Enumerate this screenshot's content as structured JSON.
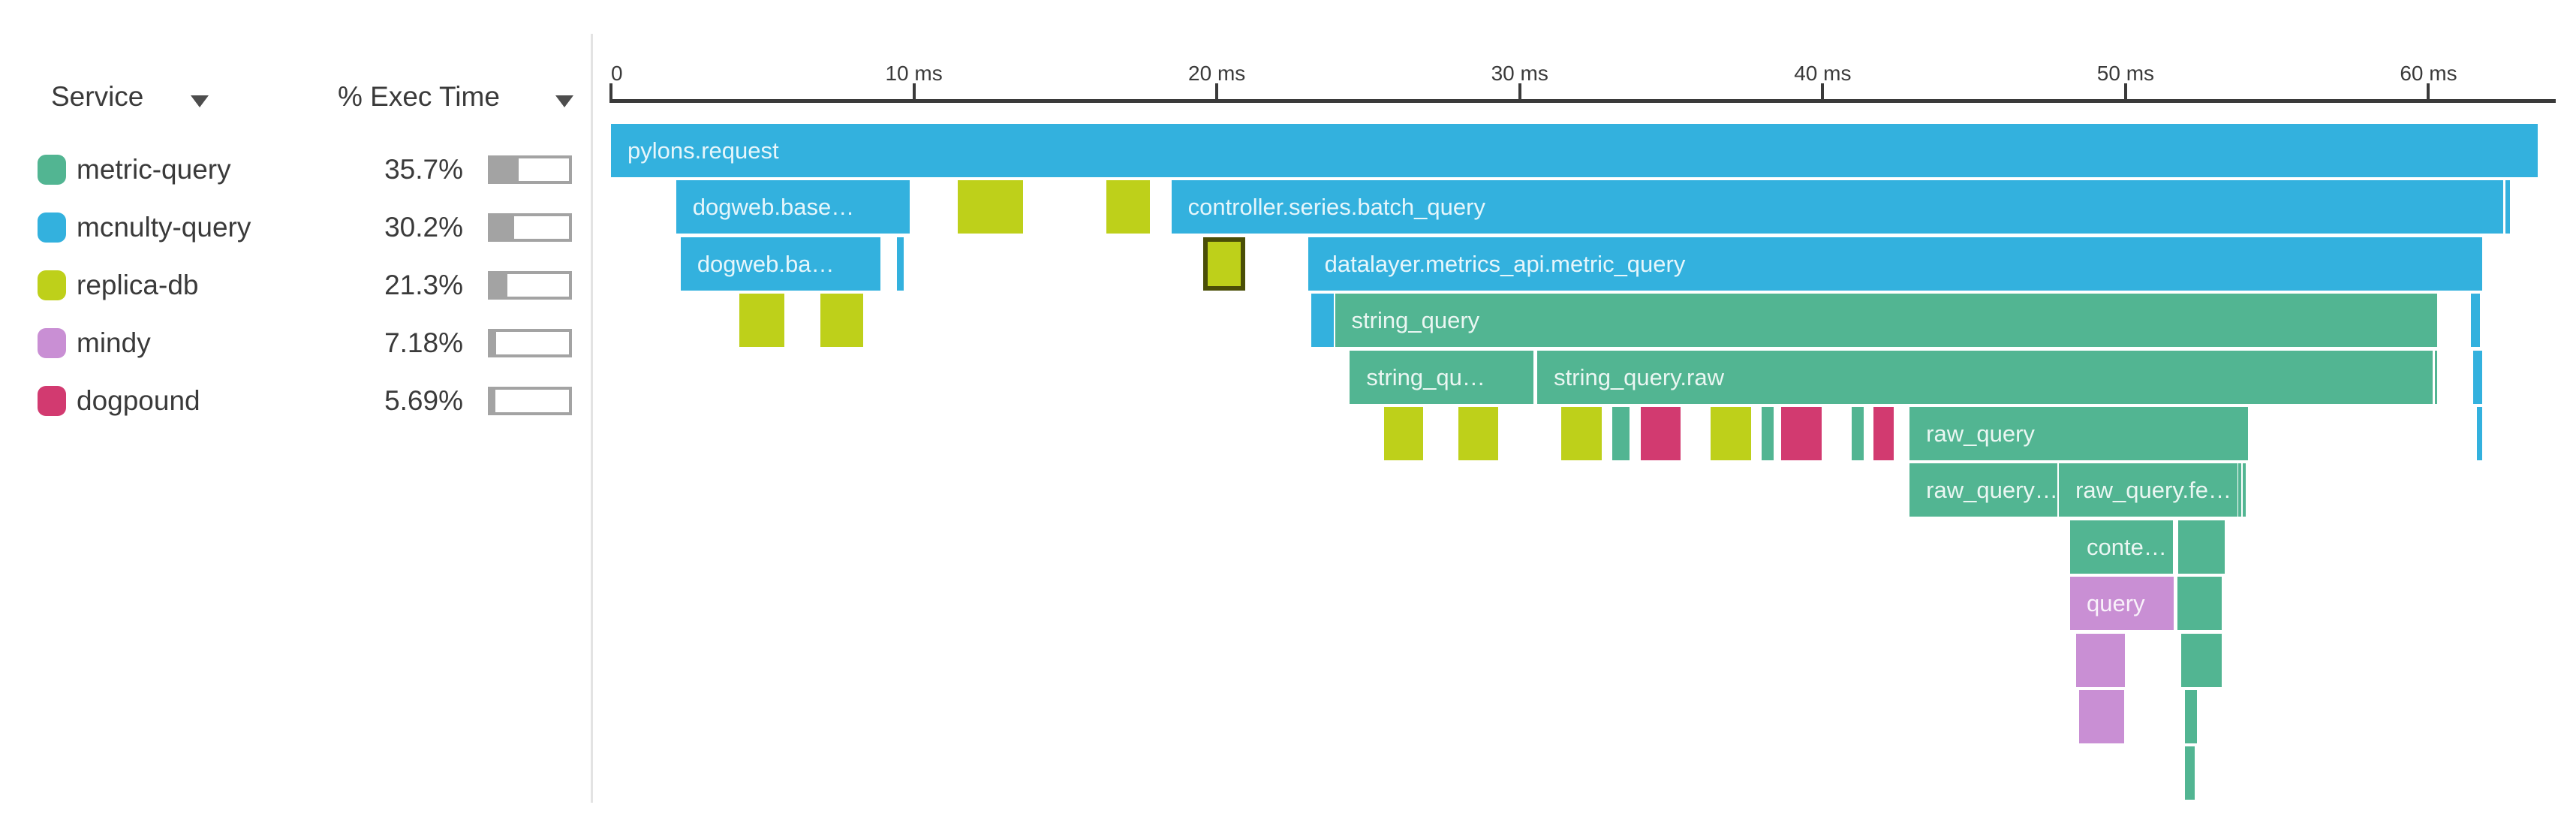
{
  "palette": {
    "metric-query": "#52b592",
    "mcnulty-query": "#33b1de",
    "replica-db": "#bed01a",
    "mindy": "#c98fd4",
    "dogpound": "#d23a70"
  },
  "selected_span_border": "#4a4e07",
  "sidebar": {
    "columns": [
      {
        "label": "Service"
      },
      {
        "label": "% Exec Time"
      }
    ],
    "services": [
      {
        "name": "metric-query",
        "pct_label": "35.7%",
        "pct": 35.7
      },
      {
        "name": "mcnulty-query",
        "pct_label": "30.2%",
        "pct": 30.2
      },
      {
        "name": "replica-db",
        "pct_label": "21.3%",
        "pct": 21.3
      },
      {
        "name": "mindy",
        "pct_label": "7.18%",
        "pct": 7.18
      },
      {
        "name": "dogpound",
        "pct_label": "5.69%",
        "pct": 5.69
      }
    ]
  },
  "chart_data": {
    "type": "flame_graph",
    "title": "",
    "unit": "ms",
    "legend_position": "left",
    "axis": {
      "min": 0,
      "max": 64.2,
      "ticks": [
        {
          "t": 0,
          "label": "0"
        },
        {
          "t": 10,
          "label": "10 ms"
        },
        {
          "t": 20,
          "label": "20 ms"
        },
        {
          "t": 30,
          "label": "30 ms"
        },
        {
          "t": 40,
          "label": "40 ms"
        },
        {
          "t": 50,
          "label": "50 ms"
        },
        {
          "t": 60,
          "label": "60 ms"
        }
      ]
    },
    "rows": [
      {
        "spans": [
          {
            "start": 0.0,
            "end": 63.6,
            "service": "mcnulty-query",
            "label": "pylons.request"
          }
        ]
      },
      {
        "spans": [
          {
            "start": 2.15,
            "end": 9.86,
            "service": "mcnulty-query",
            "label": "dogweb.base…"
          },
          {
            "start": 11.44,
            "end": 13.6,
            "service": "replica-db"
          },
          {
            "start": 16.35,
            "end": 17.78,
            "service": "replica-db"
          },
          {
            "start": 18.5,
            "end": 62.46,
            "service": "mcnulty-query",
            "label": "controller.series.batch_query"
          },
          {
            "start": 62.53,
            "end": 62.68,
            "service": "mcnulty-query"
          }
        ]
      },
      {
        "spans": [
          {
            "start": 2.3,
            "end": 8.89,
            "service": "mcnulty-query",
            "label": "dogweb.ba…"
          },
          {
            "start": 9.44,
            "end": 9.66,
            "service": "mcnulty-query"
          },
          {
            "start": 19.54,
            "end": 20.95,
            "service": "replica-db",
            "selected": true
          },
          {
            "start": 23.01,
            "end": 61.76,
            "service": "mcnulty-query",
            "label": "datalayer.metrics_api.metric_query"
          }
        ]
      },
      {
        "spans": [
          {
            "start": 4.23,
            "end": 5.72,
            "service": "replica-db"
          },
          {
            "start": 6.91,
            "end": 8.32,
            "service": "replica-db"
          },
          {
            "start": 23.11,
            "end": 23.85,
            "service": "mcnulty-query"
          },
          {
            "start": 23.9,
            "end": 60.28,
            "service": "metric-query",
            "label": "string_query"
          },
          {
            "start": 61.39,
            "end": 61.69,
            "service": "mcnulty-query"
          }
        ]
      },
      {
        "spans": [
          {
            "start": 24.39,
            "end": 30.46,
            "service": "metric-query",
            "label": "string_qu…"
          },
          {
            "start": 30.58,
            "end": 60.13,
            "service": "metric-query",
            "label": "string_query.raw"
          },
          {
            "start": 60.2,
            "end": 60.28,
            "service": "metric-query"
          },
          {
            "start": 61.47,
            "end": 61.76,
            "service": "mcnulty-query"
          }
        ]
      },
      {
        "spans": [
          {
            "start": 25.53,
            "end": 26.82,
            "service": "replica-db"
          },
          {
            "start": 27.98,
            "end": 29.3,
            "service": "replica-db"
          },
          {
            "start": 31.38,
            "end": 32.71,
            "service": "replica-db"
          },
          {
            "start": 33.06,
            "end": 33.63,
            "service": "metric-query"
          },
          {
            "start": 34.0,
            "end": 35.31,
            "service": "dogpound"
          },
          {
            "start": 36.31,
            "end": 37.64,
            "service": "replica-db"
          },
          {
            "start": 37.99,
            "end": 38.39,
            "service": "metric-query"
          },
          {
            "start": 38.63,
            "end": 39.97,
            "service": "dogpound"
          },
          {
            "start": 40.96,
            "end": 41.36,
            "service": "metric-query"
          },
          {
            "start": 41.68,
            "end": 42.35,
            "service": "dogpound"
          },
          {
            "start": 42.87,
            "end": 54.04,
            "service": "metric-query",
            "label": "raw_query"
          },
          {
            "start": 61.59,
            "end": 61.76,
            "service": "mcnulty-query"
          }
        ]
      },
      {
        "spans": [
          {
            "start": 42.87,
            "end": 47.75,
            "service": "metric-query",
            "label": "raw_query…"
          },
          {
            "start": 47.8,
            "end": 53.69,
            "service": "metric-query",
            "label": "raw_query.fe…"
          },
          {
            "start": 53.71,
            "end": 53.81,
            "service": "metric-query"
          },
          {
            "start": 53.86,
            "end": 53.96,
            "service": "metric-query"
          }
        ]
      },
      {
        "spans": [
          {
            "start": 48.17,
            "end": 51.56,
            "service": "metric-query",
            "label": "conte…"
          },
          {
            "start": 51.73,
            "end": 53.27,
            "service": "metric-query"
          }
        ]
      },
      {
        "spans": [
          {
            "start": 48.17,
            "end": 51.59,
            "service": "mindy",
            "label": "query"
          },
          {
            "start": 51.71,
            "end": 53.17,
            "service": "metric-query"
          }
        ]
      },
      {
        "spans": [
          {
            "start": 48.37,
            "end": 49.98,
            "service": "mindy"
          },
          {
            "start": 51.83,
            "end": 53.17,
            "service": "metric-query"
          }
        ]
      },
      {
        "spans": [
          {
            "start": 48.47,
            "end": 49.95,
            "service": "mindy"
          },
          {
            "start": 51.96,
            "end": 52.35,
            "service": "metric-query"
          }
        ]
      },
      {
        "spans": [
          {
            "start": 51.96,
            "end": 52.28,
            "service": "metric-query"
          }
        ]
      }
    ]
  }
}
